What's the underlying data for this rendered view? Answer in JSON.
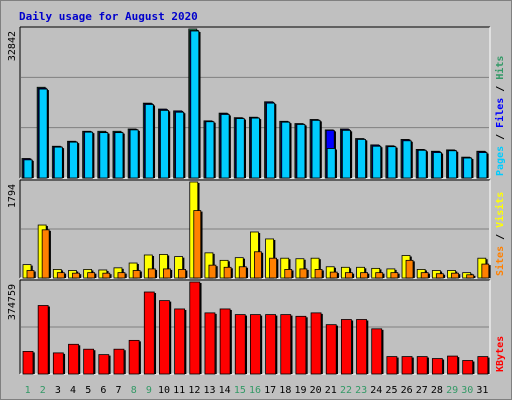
{
  "chart_data": {
    "type": "bar",
    "title": "Daily usage for August 2020",
    "categories": [
      "1",
      "2",
      "3",
      "4",
      "5",
      "6",
      "7",
      "8",
      "9",
      "10",
      "11",
      "12",
      "13",
      "14",
      "15",
      "16",
      "17",
      "18",
      "19",
      "20",
      "21",
      "22",
      "23",
      "24",
      "25",
      "26",
      "27",
      "28",
      "29",
      "30",
      "31"
    ],
    "weekend_days": [
      "1",
      "2",
      "8",
      "9",
      "15",
      "16",
      "22",
      "23",
      "29",
      "30"
    ],
    "panels": [
      {
        "key": "top",
        "ymax": 32842,
        "ymax_label": "32842",
        "legend": [
          {
            "text": "Pages",
            "color": "#00ccff"
          },
          {
            "text": " / ",
            "color": "#000000"
          },
          {
            "text": "Files",
            "color": "#0000ff"
          },
          {
            "text": " / ",
            "color": "#000000"
          },
          {
            "text": "Hits",
            "color": "#339966"
          }
        ],
        "series": [
          {
            "name": "Hits",
            "color": "#339966",
            "values": [
              4300,
              20000,
              7000,
              8100,
              10300,
              10300,
              10300,
              10800,
              16500,
              15200,
              14800,
              32842,
              12600,
              14300,
              13300,
              13400,
              16800,
              12500,
              12000,
              12900,
              10600,
              10800,
              8700,
              7300,
              7100,
              8500,
              6300,
              5900,
              6200,
              4600,
              5900
            ]
          },
          {
            "name": "Files",
            "color": "#0000ff",
            "values": [
              4200,
              19800,
              6900,
              8000,
              10200,
              10100,
              10100,
              10700,
              16400,
              15100,
              14700,
              32500,
              12500,
              14200,
              13200,
              13300,
              16700,
              12400,
              11900,
              12800,
              10500,
              10700,
              8600,
              7200,
              7000,
              8400,
              6200,
              5800,
              6100,
              4500,
              5800
            ]
          },
          {
            "name": "Pages",
            "color": "#00ccff",
            "values": [
              4000,
              19600,
              6800,
              7900,
              10100,
              10000,
              10000,
              10600,
              16200,
              14900,
              14500,
              32400,
              12400,
              14000,
              13100,
              13200,
              16500,
              12300,
              11800,
              12700,
              6500,
              10500,
              8500,
              7000,
              6900,
              8200,
              6100,
              5600,
              6000,
              4400,
              5600
            ]
          }
        ]
      },
      {
        "key": "mid",
        "ymax": 1794,
        "ymax_label": "1794",
        "legend": [
          {
            "text": "Sites",
            "color": "#ff8000"
          },
          {
            "text": " / ",
            "color": "#000000"
          },
          {
            "text": "Visits",
            "color": "#ffff00"
          }
        ],
        "series": [
          {
            "name": "Visits",
            "color": "#ffff00",
            "values": [
              250,
              990,
              160,
              140,
              160,
              150,
              190,
              280,
              430,
              440,
              400,
              1794,
              470,
              330,
              380,
              860,
              730,
              370,
              360,
              370,
              210,
              200,
              200,
              180,
              170,
              420,
              160,
              140,
              140,
              100,
              370
            ]
          },
          {
            "name": "Sites",
            "color": "#ff8000",
            "values": [
              140,
              900,
              100,
              90,
              100,
              90,
              100,
              140,
              170,
              170,
              160,
              1260,
              240,
              200,
              210,
              490,
              370,
              160,
              170,
              160,
              110,
              100,
              100,
              100,
              100,
              330,
              100,
              80,
              90,
              60,
              260
            ]
          }
        ]
      },
      {
        "key": "bot",
        "ymax": 374759,
        "ymax_label": "374759",
        "legend": [
          {
            "text": "KBytes",
            "color": "#ff0000"
          }
        ],
        "series": [
          {
            "name": "KBytes",
            "color": "#ff0000",
            "values": [
              92000,
              279000,
              86000,
              121000,
              101000,
              79000,
              101000,
              137000,
              334000,
              299000,
              265000,
              374759,
              249000,
              265000,
              242000,
              242000,
              242000,
              242000,
              235000,
              249000,
              201000,
              222000,
              222000,
              184000,
              71000,
              71000,
              71000,
              63000,
              73000,
              55000,
              71000
            ]
          }
        ]
      }
    ],
    "colors": {
      "background": "#c0c0c0",
      "frame": "#ffffff",
      "grid": "#808080",
      "day_label": "#000000",
      "weekend_label": "#339966"
    }
  }
}
